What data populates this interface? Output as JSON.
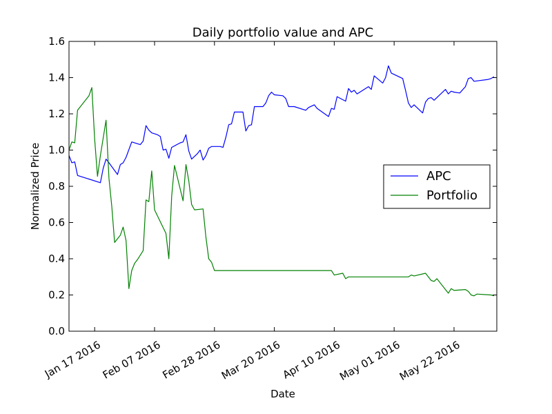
{
  "chart_data": {
    "type": "line",
    "title": "Daily portfolio value and APC",
    "xlabel": "Date",
    "ylabel": "Normalized Price",
    "ylim": [
      0.0,
      1.6
    ],
    "yticks": [
      "0.0",
      "0.2",
      "0.4",
      "0.6",
      "0.8",
      "1.0",
      "1.2",
      "1.4",
      "1.6"
    ],
    "xlim": [
      "2016-01-08",
      "2016-06-06"
    ],
    "xticks": [
      {
        "date": "2016-01-17",
        "label": "Jan 17 2016"
      },
      {
        "date": "2016-02-07",
        "label": "Feb 07 2016"
      },
      {
        "date": "2016-02-28",
        "label": "Feb 28 2016"
      },
      {
        "date": "2016-03-20",
        "label": "Mar 20 2016"
      },
      {
        "date": "2016-04-10",
        "label": "Apr 10 2016"
      },
      {
        "date": "2016-05-01",
        "label": "May 01 2016"
      },
      {
        "date": "2016-05-22",
        "label": "May 22 2016"
      }
    ],
    "legend_position": "center-right",
    "series": [
      {
        "name": "APC",
        "color": "#0000ff",
        "points": [
          [
            "2016-01-08",
            0.97
          ],
          [
            "2016-01-09",
            0.93
          ],
          [
            "2016-01-10",
            0.935
          ],
          [
            "2016-01-11",
            0.86
          ],
          [
            "2016-01-15",
            0.84
          ],
          [
            "2016-01-19",
            0.82
          ],
          [
            "2016-01-20",
            0.9
          ],
          [
            "2016-01-21",
            0.95
          ],
          [
            "2016-01-22",
            0.93
          ],
          [
            "2016-01-25",
            0.865
          ],
          [
            "2016-01-26",
            0.92
          ],
          [
            "2016-01-27",
            0.93
          ],
          [
            "2016-01-28",
            0.96
          ],
          [
            "2016-01-30",
            1.045
          ],
          [
            "2016-02-02",
            1.03
          ],
          [
            "2016-02-03",
            1.05
          ],
          [
            "2016-02-04",
            1.135
          ],
          [
            "2016-02-05",
            1.11
          ],
          [
            "2016-02-06",
            1.095
          ],
          [
            "2016-02-08",
            1.085
          ],
          [
            "2016-02-09",
            1.075
          ],
          [
            "2016-02-10",
            1.0
          ],
          [
            "2016-02-11",
            1.005
          ],
          [
            "2016-02-12",
            0.955
          ],
          [
            "2016-02-13",
            1.015
          ],
          [
            "2016-02-16",
            1.04
          ],
          [
            "2016-02-17",
            1.045
          ],
          [
            "2016-02-18",
            1.085
          ],
          [
            "2016-02-19",
            0.995
          ],
          [
            "2016-02-20",
            0.95
          ],
          [
            "2016-02-22",
            0.98
          ],
          [
            "2016-02-23",
            1.0
          ],
          [
            "2016-02-24",
            0.945
          ],
          [
            "2016-02-25",
            0.97
          ],
          [
            "2016-02-26",
            1.01
          ],
          [
            "2016-02-27",
            1.02
          ],
          [
            "2016-03-01",
            1.02
          ],
          [
            "2016-03-02",
            1.015
          ],
          [
            "2016-03-03",
            1.07
          ],
          [
            "2016-03-04",
            1.14
          ],
          [
            "2016-03-05",
            1.145
          ],
          [
            "2016-03-06",
            1.21
          ],
          [
            "2016-03-09",
            1.21
          ],
          [
            "2016-03-10",
            1.105
          ],
          [
            "2016-03-11",
            1.135
          ],
          [
            "2016-03-12",
            1.14
          ],
          [
            "2016-03-13",
            1.24
          ],
          [
            "2016-03-16",
            1.24
          ],
          [
            "2016-03-17",
            1.26
          ],
          [
            "2016-03-18",
            1.3
          ],
          [
            "2016-03-19",
            1.32
          ],
          [
            "2016-03-20",
            1.305
          ],
          [
            "2016-03-23",
            1.3
          ],
          [
            "2016-03-24",
            1.285
          ],
          [
            "2016-03-25",
            1.24
          ],
          [
            "2016-03-27",
            1.24
          ],
          [
            "2016-03-31",
            1.22
          ],
          [
            "2016-04-01",
            1.235
          ],
          [
            "2016-04-03",
            1.25
          ],
          [
            "2016-04-04",
            1.23
          ],
          [
            "2016-04-08",
            1.185
          ],
          [
            "2016-04-09",
            1.23
          ],
          [
            "2016-04-10",
            1.225
          ],
          [
            "2016-04-11",
            1.295
          ],
          [
            "2016-04-14",
            1.27
          ],
          [
            "2016-04-15",
            1.34
          ],
          [
            "2016-04-16",
            1.32
          ],
          [
            "2016-04-17",
            1.33
          ],
          [
            "2016-04-18",
            1.31
          ],
          [
            "2016-04-22",
            1.35
          ],
          [
            "2016-04-23",
            1.335
          ],
          [
            "2016-04-24",
            1.41
          ],
          [
            "2016-04-27",
            1.37
          ],
          [
            "2016-04-28",
            1.4
          ],
          [
            "2016-04-29",
            1.465
          ],
          [
            "2016-04-30",
            1.425
          ],
          [
            "2016-05-04",
            1.395
          ],
          [
            "2016-05-05",
            1.33
          ],
          [
            "2016-05-06",
            1.26
          ],
          [
            "2016-05-07",
            1.235
          ],
          [
            "2016-05-08",
            1.25
          ],
          [
            "2016-05-11",
            1.205
          ],
          [
            "2016-05-12",
            1.265
          ],
          [
            "2016-05-13",
            1.285
          ],
          [
            "2016-05-14",
            1.29
          ],
          [
            "2016-05-15",
            1.275
          ],
          [
            "2016-05-19",
            1.335
          ],
          [
            "2016-05-20",
            1.31
          ],
          [
            "2016-05-21",
            1.325
          ],
          [
            "2016-05-22",
            1.32
          ],
          [
            "2016-05-24",
            1.315
          ],
          [
            "2016-05-26",
            1.35
          ],
          [
            "2016-05-27",
            1.395
          ],
          [
            "2016-05-28",
            1.4
          ],
          [
            "2016-05-29",
            1.38
          ],
          [
            "2016-06-03",
            1.39
          ],
          [
            "2016-06-04",
            1.395
          ],
          [
            "2016-06-05",
            1.405
          ]
        ]
      },
      {
        "name": "Portfolio",
        "color": "#008000",
        "points": [
          [
            "2016-01-08",
            1.0
          ],
          [
            "2016-01-09",
            1.045
          ],
          [
            "2016-01-10",
            1.04
          ],
          [
            "2016-01-11",
            1.22
          ],
          [
            "2016-01-15",
            1.3
          ],
          [
            "2016-01-16",
            1.345
          ],
          [
            "2016-01-17",
            1.06
          ],
          [
            "2016-01-18",
            0.855
          ],
          [
            "2016-01-19",
            0.97
          ],
          [
            "2016-01-21",
            1.165
          ],
          [
            "2016-01-22",
            0.845
          ],
          [
            "2016-01-23",
            0.69
          ],
          [
            "2016-01-24",
            0.49
          ],
          [
            "2016-01-26",
            0.53
          ],
          [
            "2016-01-27",
            0.575
          ],
          [
            "2016-01-28",
            0.5
          ],
          [
            "2016-01-29",
            0.235
          ],
          [
            "2016-01-30",
            0.335
          ],
          [
            "2016-01-31",
            0.375
          ],
          [
            "2016-02-01",
            0.395
          ],
          [
            "2016-02-03",
            0.445
          ],
          [
            "2016-02-04",
            0.725
          ],
          [
            "2016-02-05",
            0.715
          ],
          [
            "2016-02-06",
            0.885
          ],
          [
            "2016-02-07",
            0.67
          ],
          [
            "2016-02-11",
            0.54
          ],
          [
            "2016-02-12",
            0.4
          ],
          [
            "2016-02-13",
            0.745
          ],
          [
            "2016-02-14",
            0.915
          ],
          [
            "2016-02-17",
            0.72
          ],
          [
            "2016-02-18",
            0.92
          ],
          [
            "2016-02-19",
            0.83
          ],
          [
            "2016-02-20",
            0.7
          ],
          [
            "2016-02-21",
            0.67
          ],
          [
            "2016-02-24",
            0.675
          ],
          [
            "2016-02-25",
            0.52
          ],
          [
            "2016-02-26",
            0.4
          ],
          [
            "2016-02-27",
            0.38
          ],
          [
            "2016-02-28",
            0.335
          ],
          [
            "2016-04-09",
            0.335
          ],
          [
            "2016-04-10",
            0.31
          ],
          [
            "2016-04-13",
            0.32
          ],
          [
            "2016-04-14",
            0.29
          ],
          [
            "2016-04-15",
            0.3
          ],
          [
            "2016-05-06",
            0.3
          ],
          [
            "2016-05-07",
            0.31
          ],
          [
            "2016-05-08",
            0.305
          ],
          [
            "2016-05-12",
            0.32
          ],
          [
            "2016-05-14",
            0.28
          ],
          [
            "2016-05-15",
            0.275
          ],
          [
            "2016-05-16",
            0.29
          ],
          [
            "2016-05-20",
            0.21
          ],
          [
            "2016-05-21",
            0.235
          ],
          [
            "2016-05-22",
            0.225
          ],
          [
            "2016-05-26",
            0.23
          ],
          [
            "2016-05-27",
            0.22
          ],
          [
            "2016-05-28",
            0.2
          ],
          [
            "2016-05-29",
            0.195
          ],
          [
            "2016-05-30",
            0.205
          ],
          [
            "2016-06-04",
            0.2
          ],
          [
            "2016-06-05",
            0.195
          ]
        ]
      }
    ]
  }
}
